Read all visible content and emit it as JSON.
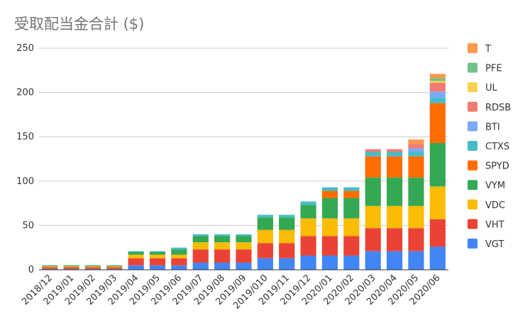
{
  "chart_data": {
    "type": "bar",
    "stacked": true,
    "title": "受取配当金合計 ($)",
    "xlabel": "",
    "ylabel": "",
    "ylim": [
      0,
      250
    ],
    "yticks": [
      0,
      50,
      100,
      150,
      200,
      250
    ],
    "grid": true,
    "legend_position": "right",
    "categories": [
      "2018/12",
      "2019/01",
      "2019/02",
      "2019/03",
      "2019/04",
      "2019/05",
      "2019/06",
      "2019/07",
      "2019/08",
      "2019/09",
      "2019/010",
      "2019/11",
      "2019/12",
      "2020/01",
      "2020/02",
      "2020/03",
      "2020/04",
      "2020/05",
      "2020/06"
    ],
    "series": [
      {
        "name": "VGT",
        "color": "#4285F4",
        "values": [
          1,
          1,
          1,
          1,
          5,
          5,
          5,
          8,
          8,
          8,
          13,
          13,
          16,
          16,
          16,
          21,
          21,
          21,
          26
        ]
      },
      {
        "name": "VHT",
        "color": "#EA4335",
        "values": [
          2,
          2,
          2,
          2,
          8,
          8,
          8,
          15,
          15,
          15,
          17,
          17,
          22,
          22,
          22,
          26,
          26,
          26,
          31
        ]
      },
      {
        "name": "VDC",
        "color": "#FBBC04",
        "values": [
          1,
          1,
          1,
          1,
          4,
          4,
          4,
          8,
          8,
          8,
          15,
          15,
          20,
          20,
          20,
          25,
          25,
          25,
          37
        ]
      },
      {
        "name": "VYM",
        "color": "#34A853",
        "values": [
          1,
          1,
          1,
          1,
          3,
          3,
          6,
          7,
          7,
          7,
          14,
          14,
          15,
          23,
          23,
          32,
          32,
          32,
          49
        ]
      },
      {
        "name": "SPYD",
        "color": "#FF6D01",
        "values": [
          0,
          0,
          0,
          0,
          0,
          0,
          0,
          0,
          0,
          0,
          0,
          0,
          0,
          8,
          8,
          24,
          24,
          24,
          45
        ]
      },
      {
        "name": "CTXS",
        "color": "#46BDC6",
        "values": [
          0,
          0,
          0,
          0,
          1,
          1,
          2,
          2,
          2,
          2,
          3,
          3,
          4,
          4,
          4,
          5,
          5,
          5,
          6
        ]
      },
      {
        "name": "BTI",
        "color": "#7BAAF7",
        "values": [
          0,
          0,
          0,
          0,
          0,
          0,
          0,
          0,
          0,
          0,
          0,
          0,
          0,
          0,
          0,
          0,
          0,
          4,
          7
        ]
      },
      {
        "name": "RDSB",
        "color": "#F07B72",
        "values": [
          0,
          0,
          0,
          0,
          0,
          0,
          0,
          0,
          0,
          0,
          0,
          0,
          0,
          0,
          0,
          3,
          3,
          5,
          10
        ]
      },
      {
        "name": "UL",
        "color": "#FCD04F",
        "values": [
          0,
          0,
          0,
          0,
          0,
          0,
          0,
          0,
          0,
          0,
          0,
          0,
          0,
          0,
          0,
          0,
          0,
          0,
          2
        ]
      },
      {
        "name": "PFE",
        "color": "#71C287",
        "values": [
          0,
          0,
          0,
          0,
          0,
          0,
          0,
          0,
          0,
          0,
          0,
          0,
          0,
          0,
          0,
          0,
          0,
          0,
          3
        ]
      },
      {
        "name": "T",
        "color": "#FF994D",
        "values": [
          0,
          0,
          0,
          0,
          0,
          0,
          0,
          0,
          0,
          0,
          0,
          0,
          0,
          0,
          0,
          0,
          0,
          5,
          5
        ]
      }
    ]
  }
}
